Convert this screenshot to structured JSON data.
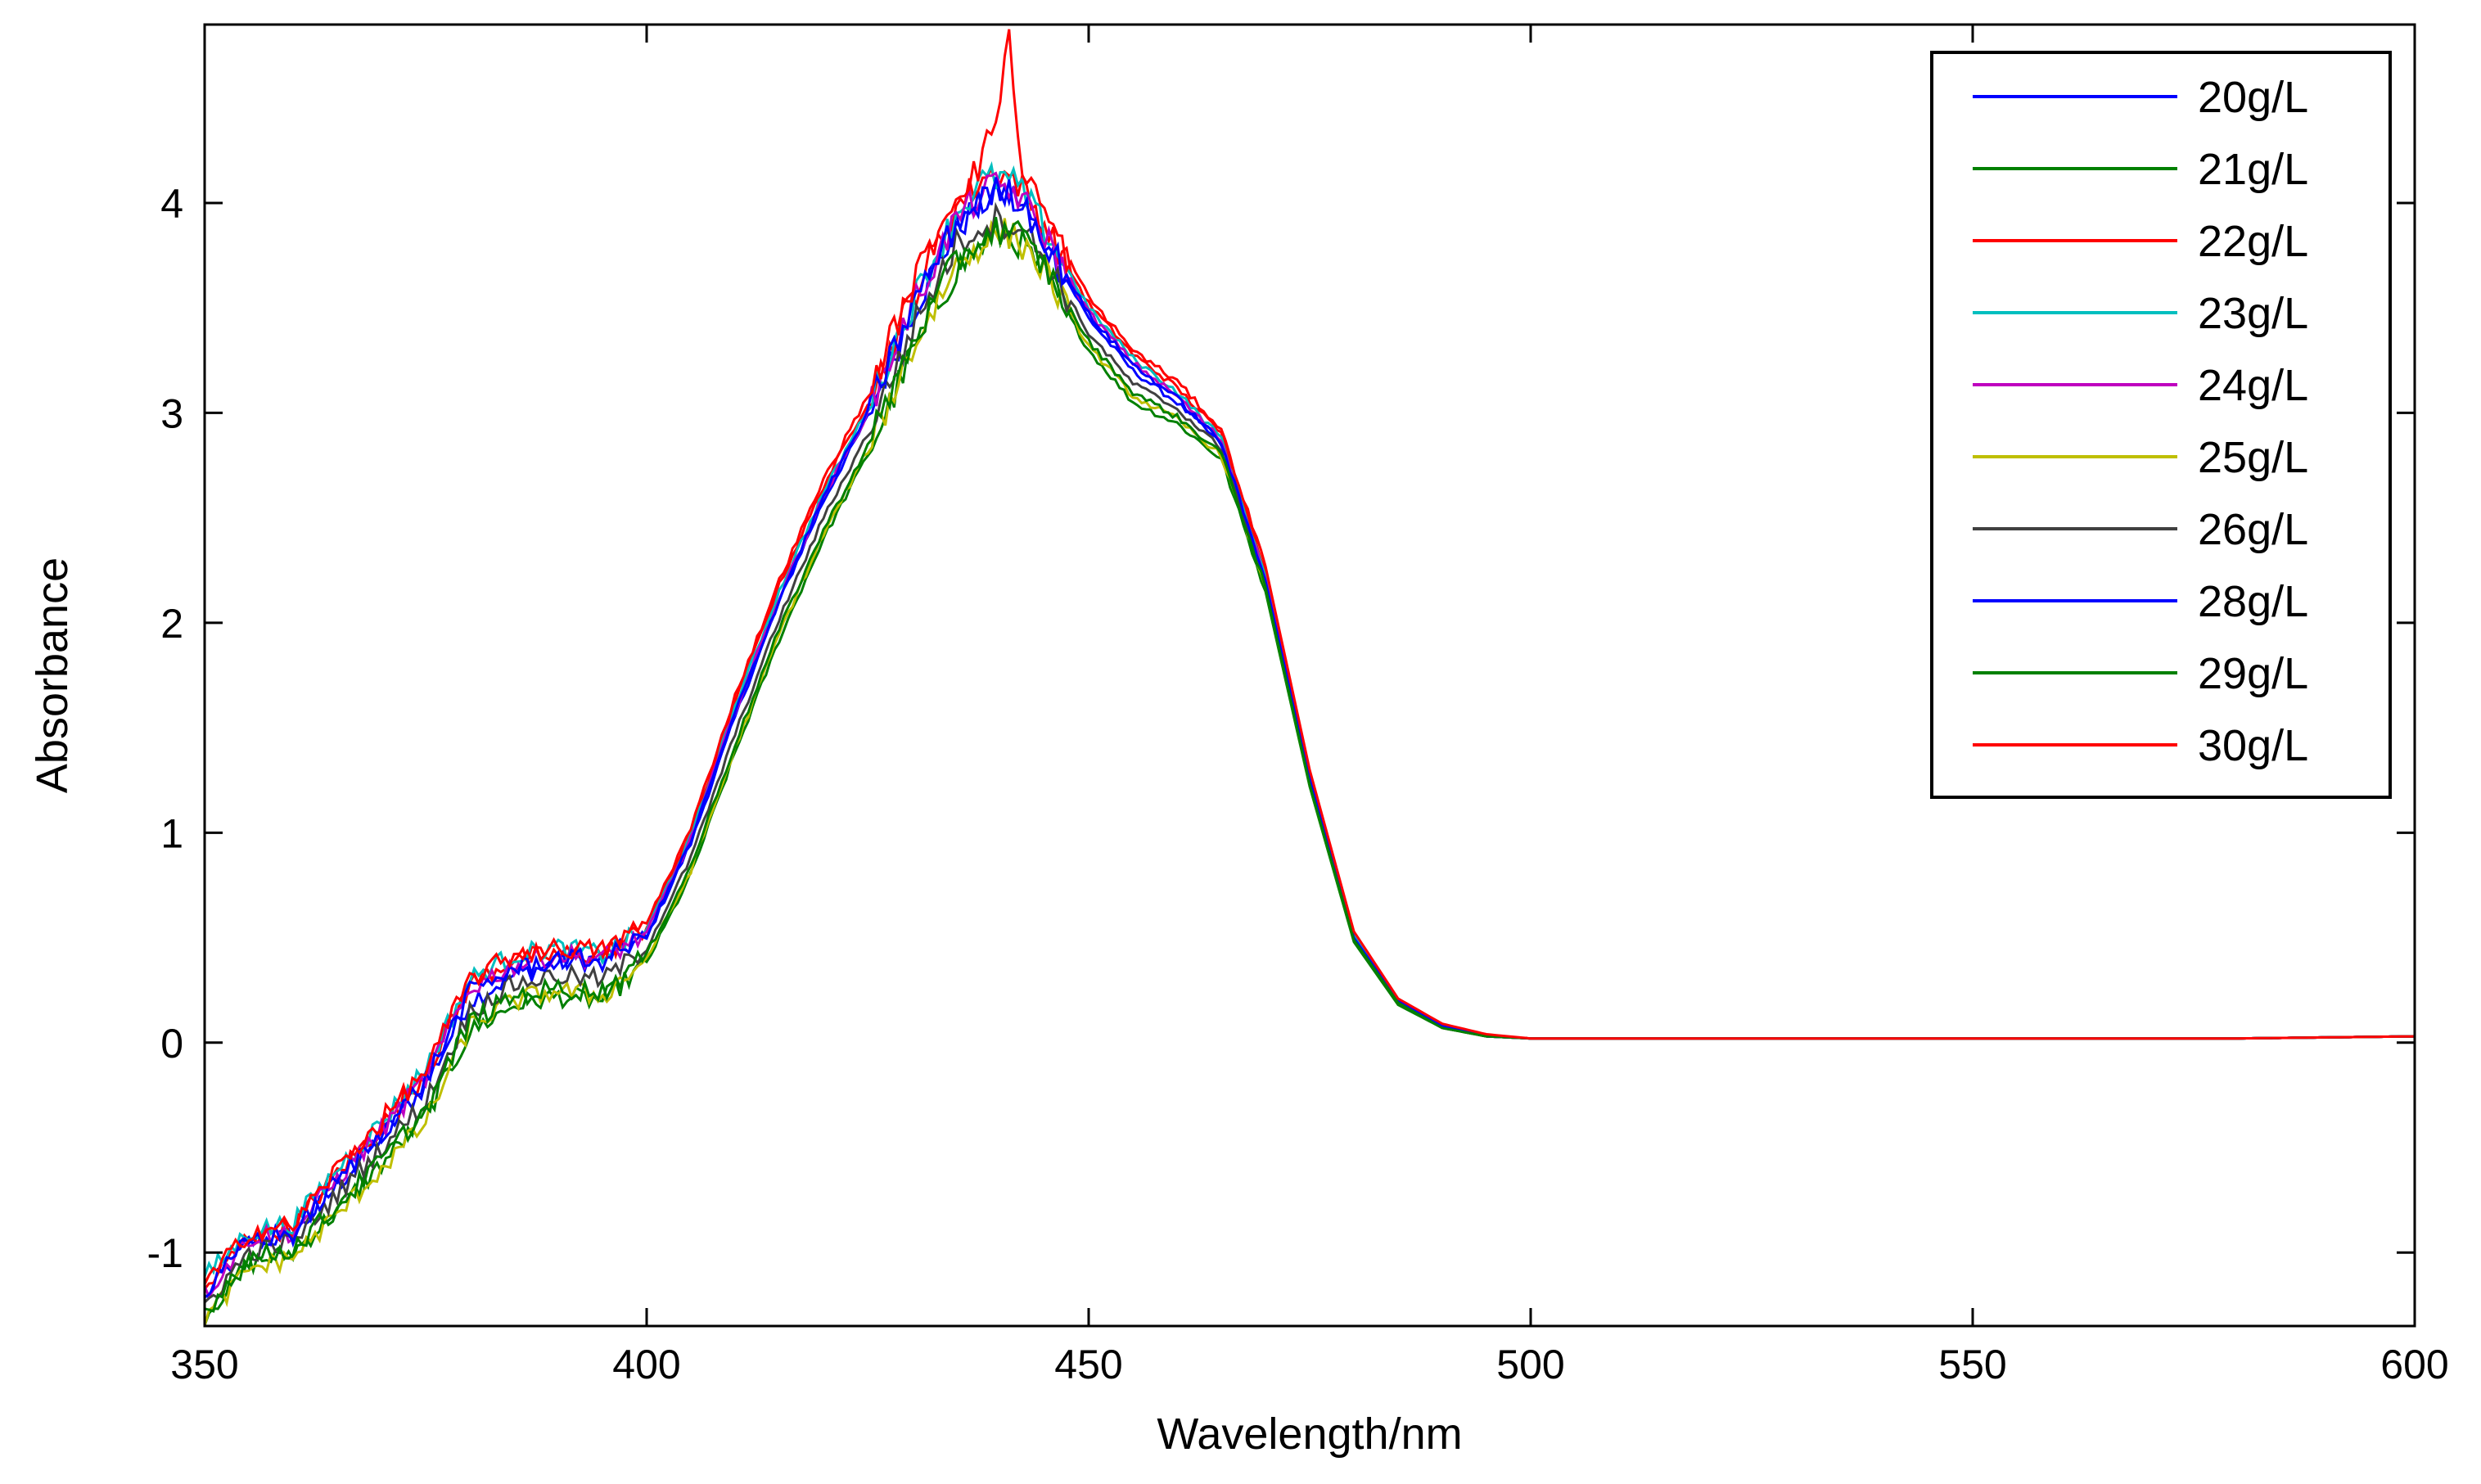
{
  "chart_data": {
    "type": "line",
    "title": "",
    "xlabel": "Wavelength/nm",
    "ylabel": "Absorbance",
    "xlim": [
      350,
      600
    ],
    "ylim": [
      -1.35,
      4.85
    ],
    "xticks": [
      350,
      400,
      450,
      500,
      550,
      600
    ],
    "yticks": [
      -1,
      0,
      1,
      2,
      3,
      4
    ],
    "grid": false,
    "legend_position": "top-right",
    "series": [
      {
        "name": "20g/L",
        "color": "#0000ff",
        "x": [
          350,
          355,
          360,
          365,
          370,
          375,
          380,
          385,
          390,
          395,
          400,
          405,
          410,
          415,
          420,
          425,
          430,
          435,
          438,
          440,
          442,
          445,
          450,
          455,
          460,
          465,
          470,
          475,
          480,
          485,
          490,
          495,
          500,
          510,
          520,
          540,
          560,
          580,
          600
        ],
        "y": [
          -1.22,
          -0.95,
          -0.92,
          -0.68,
          -0.45,
          -0.2,
          0.2,
          0.32,
          0.38,
          0.4,
          0.5,
          0.95,
          1.55,
          2.1,
          2.58,
          2.98,
          3.48,
          3.88,
          4.0,
          4.05,
          4.02,
          3.82,
          3.45,
          3.2,
          3.05,
          2.85,
          2.2,
          1.25,
          0.5,
          0.2,
          0.08,
          0.03,
          0.02,
          0.02,
          0.02,
          0.02,
          0.02,
          0.02,
          0.03
        ]
      },
      {
        "name": "21g/L",
        "color": "#008000",
        "x": [
          350,
          355,
          360,
          365,
          370,
          375,
          380,
          385,
          390,
          395,
          400,
          405,
          410,
          415,
          420,
          425,
          430,
          435,
          438,
          440,
          442,
          445,
          450,
          455,
          460,
          465,
          470,
          475,
          480,
          485,
          490,
          495,
          500,
          510,
          520,
          540,
          560,
          580,
          600
        ],
        "y": [
          -1.3,
          -1.05,
          -1.0,
          -0.8,
          -0.58,
          -0.35,
          0.05,
          0.18,
          0.22,
          0.2,
          0.38,
          0.8,
          1.38,
          1.92,
          2.4,
          2.8,
          3.28,
          3.68,
          3.8,
          3.85,
          3.82,
          3.66,
          3.3,
          3.05,
          2.95,
          2.78,
          2.15,
          1.22,
          0.48,
          0.18,
          0.07,
          0.03,
          0.02,
          0.02,
          0.02,
          0.02,
          0.02,
          0.02,
          0.03
        ]
      },
      {
        "name": "22g/L",
        "color": "#ff0000",
        "x": [
          350,
          355,
          360,
          365,
          370,
          375,
          380,
          385,
          390,
          395,
          400,
          405,
          410,
          415,
          420,
          425,
          430,
          435,
          438,
          440,
          442,
          445,
          450,
          455,
          460,
          465,
          470,
          475,
          480,
          485,
          490,
          495,
          500,
          510,
          520,
          540,
          560,
          580,
          600
        ],
        "y": [
          -1.18,
          -0.92,
          -0.88,
          -0.62,
          -0.4,
          -0.15,
          0.28,
          0.4,
          0.42,
          0.42,
          0.55,
          1.0,
          1.62,
          2.18,
          2.65,
          3.05,
          3.55,
          3.98,
          4.12,
          4.15,
          4.1,
          3.9,
          3.52,
          3.28,
          3.12,
          2.9,
          2.25,
          1.28,
          0.52,
          0.2,
          0.08,
          0.03,
          0.02,
          0.02,
          0.02,
          0.02,
          0.02,
          0.02,
          0.03
        ]
      },
      {
        "name": "23g/L",
        "color": "#00bfbf",
        "x": [
          350,
          355,
          360,
          365,
          370,
          375,
          380,
          385,
          390,
          395,
          400,
          405,
          410,
          415,
          420,
          425,
          430,
          435,
          438,
          440,
          442,
          445,
          450,
          455,
          460,
          465,
          470,
          475,
          480,
          485,
          490,
          495,
          500,
          510,
          520,
          540,
          560,
          580,
          600
        ],
        "y": [
          -1.12,
          -0.9,
          -0.86,
          -0.6,
          -0.38,
          -0.12,
          0.3,
          0.42,
          0.45,
          0.42,
          0.54,
          0.98,
          1.6,
          2.15,
          2.62,
          3.02,
          3.52,
          3.95,
          4.1,
          4.12,
          4.08,
          3.88,
          3.5,
          3.26,
          3.1,
          2.88,
          2.22,
          1.27,
          0.51,
          0.2,
          0.08,
          0.03,
          0.02,
          0.02,
          0.02,
          0.02,
          0.02,
          0.02,
          0.03
        ]
      },
      {
        "name": "24g/L",
        "color": "#bf00bf",
        "x": [
          350,
          355,
          360,
          365,
          370,
          375,
          380,
          385,
          390,
          395,
          400,
          405,
          410,
          415,
          420,
          425,
          430,
          435,
          438,
          440,
          442,
          445,
          450,
          455,
          460,
          465,
          470,
          475,
          480,
          485,
          490,
          495,
          500,
          510,
          520,
          540,
          560,
          580,
          600
        ],
        "y": [
          -1.2,
          -0.93,
          -0.9,
          -0.65,
          -0.42,
          -0.17,
          0.26,
          0.37,
          0.42,
          0.4,
          0.52,
          0.97,
          1.58,
          2.12,
          2.6,
          3.0,
          3.5,
          3.92,
          4.05,
          4.08,
          4.04,
          3.85,
          3.48,
          3.24,
          3.08,
          2.87,
          2.21,
          1.26,
          0.5,
          0.2,
          0.08,
          0.03,
          0.02,
          0.02,
          0.02,
          0.02,
          0.02,
          0.02,
          0.03
        ]
      },
      {
        "name": "25g/L",
        "color": "#bfbf00",
        "x": [
          350,
          355,
          360,
          365,
          370,
          375,
          380,
          385,
          390,
          395,
          400,
          405,
          410,
          415,
          420,
          425,
          430,
          435,
          438,
          440,
          442,
          445,
          450,
          455,
          460,
          465,
          470,
          475,
          480,
          485,
          490,
          495,
          500,
          510,
          520,
          540,
          560,
          580,
          600
        ],
        "y": [
          -1.32,
          -1.08,
          -1.02,
          -0.82,
          -0.6,
          -0.38,
          0.08,
          0.2,
          0.25,
          0.22,
          0.4,
          0.82,
          1.4,
          1.95,
          2.42,
          2.82,
          3.3,
          3.7,
          3.82,
          3.86,
          3.83,
          3.68,
          3.32,
          3.08,
          2.97,
          2.8,
          2.17,
          1.23,
          0.49,
          0.19,
          0.07,
          0.03,
          0.02,
          0.02,
          0.02,
          0.02,
          0.02,
          0.02,
          0.03
        ]
      },
      {
        "name": "26g/L",
        "color": "#404040",
        "x": [
          350,
          355,
          360,
          365,
          370,
          375,
          380,
          385,
          390,
          395,
          400,
          405,
          410,
          415,
          420,
          425,
          430,
          435,
          438,
          440,
          442,
          445,
          450,
          455,
          460,
          465,
          470,
          475,
          480,
          485,
          490,
          495,
          500,
          510,
          520,
          540,
          560,
          580,
          600
        ],
        "y": [
          -1.25,
          -1.0,
          -0.95,
          -0.72,
          -0.5,
          -0.28,
          0.15,
          0.28,
          0.32,
          0.3,
          0.45,
          0.88,
          1.47,
          2.02,
          2.5,
          2.9,
          3.4,
          3.8,
          3.9,
          3.92,
          3.9,
          3.74,
          3.38,
          3.14,
          3.02,
          2.83,
          2.18,
          1.24,
          0.49,
          0.19,
          0.07,
          0.03,
          0.02,
          0.02,
          0.02,
          0.02,
          0.02,
          0.02,
          0.03
        ]
      },
      {
        "name": "28g/L",
        "color": "#0000ff",
        "x": [
          350,
          355,
          360,
          365,
          370,
          375,
          380,
          385,
          390,
          395,
          400,
          405,
          410,
          415,
          420,
          425,
          430,
          435,
          438,
          440,
          442,
          445,
          450,
          455,
          460,
          465,
          470,
          475,
          480,
          485,
          490,
          495,
          500,
          510,
          520,
          540,
          560,
          580,
          600
        ],
        "y": [
          -1.2,
          -0.94,
          -0.91,
          -0.66,
          -0.43,
          -0.18,
          0.24,
          0.35,
          0.4,
          0.39,
          0.51,
          0.96,
          1.57,
          2.11,
          2.6,
          3.0,
          3.5,
          3.9,
          4.02,
          4.06,
          4.03,
          3.84,
          3.47,
          3.23,
          3.07,
          2.86,
          2.2,
          1.26,
          0.5,
          0.2,
          0.08,
          0.03,
          0.02,
          0.02,
          0.02,
          0.02,
          0.02,
          0.02,
          0.03
        ]
      },
      {
        "name": "29g/L",
        "color": "#008000",
        "x": [
          350,
          355,
          360,
          365,
          370,
          375,
          380,
          385,
          390,
          395,
          400,
          405,
          410,
          415,
          420,
          425,
          430,
          435,
          438,
          440,
          442,
          445,
          450,
          455,
          460,
          465,
          470,
          475,
          480,
          485,
          490,
          495,
          500,
          510,
          520,
          540,
          560,
          580,
          600
        ],
        "y": [
          -1.28,
          -1.03,
          -0.98,
          -0.78,
          -0.56,
          -0.32,
          0.1,
          0.22,
          0.26,
          0.24,
          0.42,
          0.84,
          1.42,
          1.97,
          2.44,
          2.84,
          3.33,
          3.72,
          3.84,
          3.88,
          3.85,
          3.7,
          3.34,
          3.1,
          2.98,
          2.81,
          2.17,
          1.23,
          0.49,
          0.19,
          0.07,
          0.03,
          0.02,
          0.02,
          0.02,
          0.02,
          0.02,
          0.02,
          0.03
        ]
      },
      {
        "name": "30g/L",
        "color": "#ff0000",
        "x": [
          350,
          355,
          360,
          365,
          370,
          375,
          380,
          385,
          390,
          395,
          400,
          405,
          410,
          415,
          420,
          425,
          430,
          435,
          438,
          440,
          441,
          442,
          445,
          450,
          455,
          460,
          465,
          470,
          475,
          480,
          485,
          490,
          495,
          500,
          510,
          520,
          540,
          560,
          580,
          600
        ],
        "y": [
          -1.16,
          -0.9,
          -0.87,
          -0.6,
          -0.37,
          -0.13,
          0.3,
          0.42,
          0.45,
          0.44,
          0.57,
          1.02,
          1.65,
          2.2,
          2.68,
          3.08,
          3.6,
          4.05,
          4.2,
          4.5,
          4.85,
          4.25,
          3.95,
          3.55,
          3.3,
          3.15,
          2.92,
          2.27,
          1.3,
          0.53,
          0.21,
          0.09,
          0.04,
          0.02,
          0.02,
          0.02,
          0.02,
          0.02,
          0.02,
          0.03
        ]
      }
    ]
  }
}
